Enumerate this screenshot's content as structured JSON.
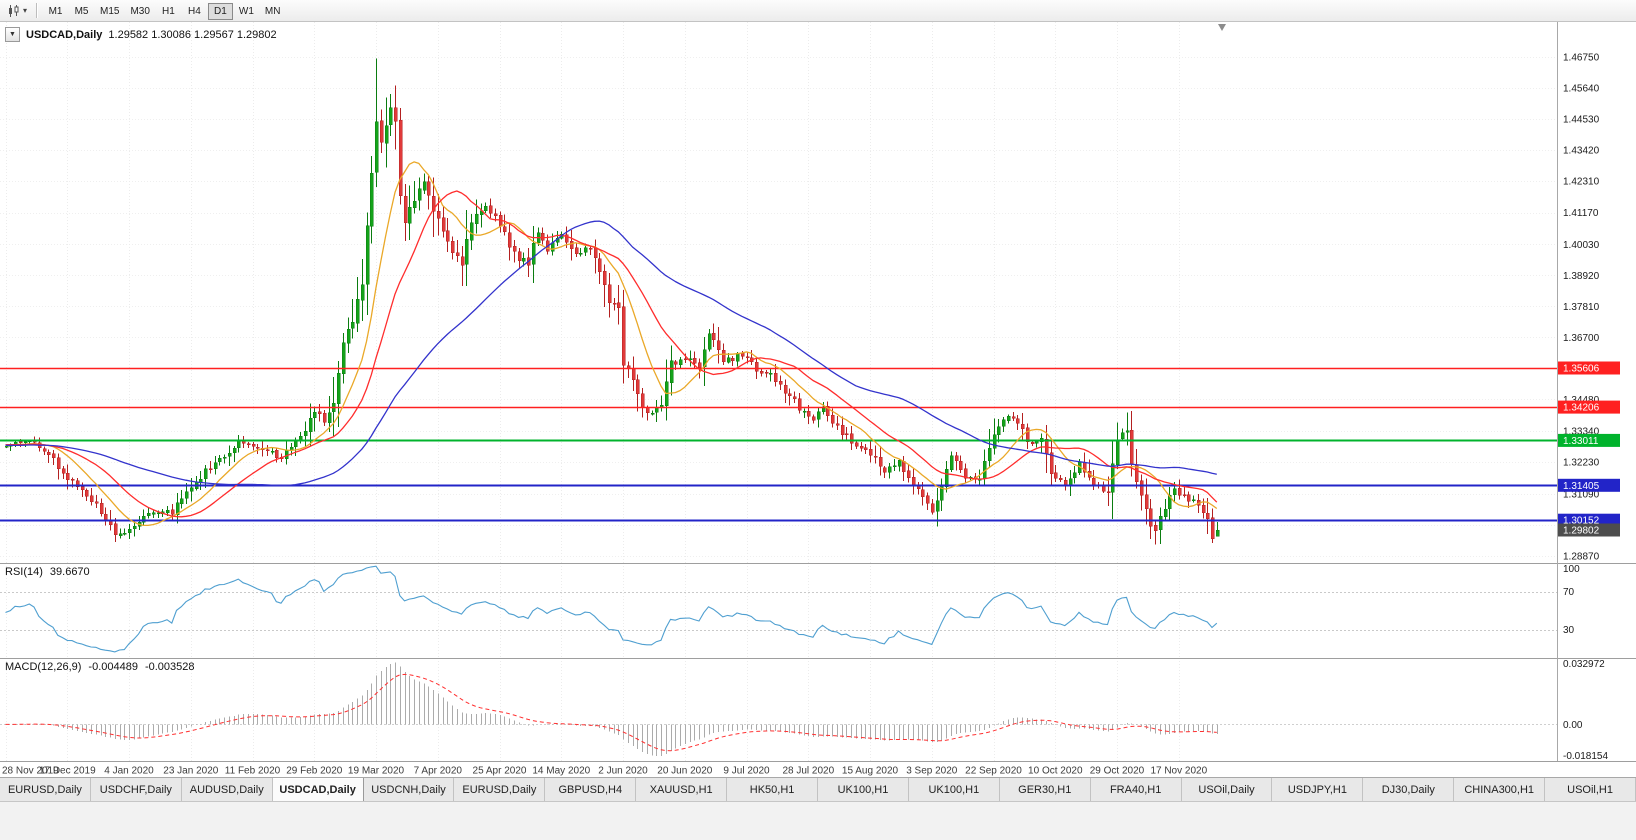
{
  "window": {
    "app_title": "USDCAD,Daily"
  },
  "toolbar": {
    "timeframes": [
      "M1",
      "M5",
      "M15",
      "M30",
      "H1",
      "H4",
      "D1",
      "W1",
      "MN"
    ],
    "active_timeframe": "D1"
  },
  "chart": {
    "symbol": "USDCAD,Daily",
    "ohlc_text": "1.29582 1.30086 1.29567 1.29802",
    "colors": {
      "up": "#14a31a",
      "up_stroke": "#0b7c10",
      "down": "#e03a3a",
      "down_stroke": "#b32020"
    },
    "price_axis": {
      "range_min": 1.2862,
      "range_max": 1.48,
      "labels": [
        "1.46750",
        "1.45640",
        "1.44530",
        "1.43420",
        "1.42310",
        "1.41170",
        "1.40030",
        "1.38920",
        "1.37810",
        "1.36700",
        "1.35590",
        "1.34480",
        "1.33340",
        "1.32230",
        "1.31090",
        "1.29980",
        "1.28870"
      ]
    },
    "hlines": [
      {
        "value": 1.35606,
        "label": "1.35606",
        "color": "#ff2020",
        "width": 1.5
      },
      {
        "value": 1.34206,
        "label": "1.34206",
        "color": "#ff2020",
        "width": 1.5
      },
      {
        "value": 1.33011,
        "label": "1.33011",
        "color": "#00b32c",
        "width": 2
      },
      {
        "value": 1.31405,
        "label": "1.31405",
        "color": "#2224c8",
        "width": 2
      },
      {
        "value": 1.30152,
        "label": "1.30152",
        "color": "#2224c8",
        "width": 2
      }
    ],
    "current_price": {
      "value": 1.29802,
      "label": "1.29802",
      "badge_color": "#4d4d4d"
    }
  },
  "chart_data": {
    "type": "candlestick",
    "symbol": "USDCAD",
    "timeframe": "Daily",
    "candle_count": 256,
    "last_candle": {
      "open": 1.29582,
      "high": 1.30086,
      "low": 1.29567,
      "close": 1.29802
    },
    "close_anchors": [
      [
        0,
        1.3285
      ],
      [
        3,
        1.33
      ],
      [
        6,
        1.3292
      ],
      [
        9,
        1.3252
      ],
      [
        13,
        1.3168
      ],
      [
        16,
        1.312
      ],
      [
        19,
        1.308
      ],
      [
        22,
        1.2988
      ],
      [
        24,
        1.2958
      ],
      [
        26,
        1.2978
      ],
      [
        29,
        1.3035
      ],
      [
        32,
        1.3052
      ],
      [
        35,
        1.3048
      ],
      [
        39,
        1.3135
      ],
      [
        43,
        1.3205
      ],
      [
        46,
        1.3248
      ],
      [
        49,
        1.3298
      ],
      [
        52,
        1.3288
      ],
      [
        55,
        1.3262
      ],
      [
        58,
        1.3246
      ],
      [
        61,
        1.3298
      ],
      [
        63,
        1.3345
      ],
      [
        65,
        1.3402
      ],
      [
        67,
        1.3372
      ],
      [
        69,
        1.3425
      ],
      [
        71,
        1.3648
      ],
      [
        73,
        1.3732
      ],
      [
        75,
        1.3862
      ],
      [
        77,
        1.4262
      ],
      [
        78,
        1.4452
      ],
      [
        79,
        1.438
      ],
      [
        80,
        1.4435
      ],
      [
        81,
        1.4495
      ],
      [
        82,
        1.445
      ],
      [
        83,
        1.4185
      ],
      [
        84,
        1.409
      ],
      [
        86,
        1.416
      ],
      [
        88,
        1.424
      ],
      [
        90,
        1.413
      ],
      [
        92,
        1.404
      ],
      [
        94,
        1.3985
      ],
      [
        96,
        1.394
      ],
      [
        98,
        1.409
      ],
      [
        101,
        1.414
      ],
      [
        104,
        1.408
      ],
      [
        106,
        1.4005
      ],
      [
        108,
        1.395
      ],
      [
        110,
        1.394
      ],
      [
        112,
        1.4055
      ],
      [
        114,
        1.3985
      ],
      [
        117,
        1.4045
      ],
      [
        120,
        1.397
      ],
      [
        123,
        1.3995
      ],
      [
        125,
        1.391
      ],
      [
        127,
        1.3795
      ],
      [
        129,
        1.377
      ],
      [
        130,
        1.357
      ],
      [
        132,
        1.3525
      ],
      [
        134,
        1.3425
      ],
      [
        136,
        1.3395
      ],
      [
        138,
        1.3435
      ],
      [
        140,
        1.3575
      ],
      [
        143,
        1.36
      ],
      [
        146,
        1.355
      ],
      [
        148,
        1.369
      ],
      [
        151,
        1.3585
      ],
      [
        155,
        1.361
      ],
      [
        158,
        1.3555
      ],
      [
        161,
        1.3535
      ],
      [
        164,
        1.348
      ],
      [
        167,
        1.342
      ],
      [
        170,
        1.3385
      ],
      [
        172,
        1.3415
      ],
      [
        175,
        1.335
      ],
      [
        178,
        1.3295
      ],
      [
        182,
        1.3255
      ],
      [
        185,
        1.319
      ],
      [
        188,
        1.3225
      ],
      [
        191,
        1.314
      ],
      [
        193,
        1.311
      ],
      [
        195,
        1.3055
      ],
      [
        197,
        1.3135
      ],
      [
        199,
        1.324
      ],
      [
        202,
        1.3175
      ],
      [
        205,
        1.317
      ],
      [
        208,
        1.3325
      ],
      [
        210,
        1.3385
      ],
      [
        213,
        1.337
      ],
      [
        215,
        1.33
      ],
      [
        218,
        1.3305
      ],
      [
        220,
        1.3185
      ],
      [
        223,
        1.3135
      ],
      [
        226,
        1.3215
      ],
      [
        229,
        1.314
      ],
      [
        232,
        1.3125
      ],
      [
        234,
        1.3315
      ],
      [
        236,
        1.3325
      ],
      [
        237,
        1.3215
      ],
      [
        239,
        1.3095
      ],
      [
        241,
        1.2995
      ],
      [
        242,
        1.2978
      ],
      [
        244,
        1.306
      ],
      [
        246,
        1.3135
      ],
      [
        247,
        1.3115
      ],
      [
        249,
        1.309
      ],
      [
        251,
        1.3075
      ],
      [
        253,
        1.3015
      ],
      [
        254,
        1.2958
      ],
      [
        255,
        1.298
      ]
    ],
    "pinned": {
      "78": {
        "h": 1.4669
      },
      "196": {
        "l": 1.2992
      },
      "242": {
        "l": 1.2928
      },
      "255": {
        "o": 1.29582,
        "h": 1.30086,
        "l": 1.29567,
        "c": 1.29802
      }
    },
    "moving_averages": [
      {
        "period": 10,
        "color": "#eaa828"
      },
      {
        "period": 20,
        "color": "#ff2d2d"
      },
      {
        "period": 50,
        "color": "#3333cc"
      }
    ],
    "x_axis_dates": [
      "28 Nov 2019",
      "17 Dec 2019",
      "4 Jan 2020",
      "23 Jan 2020",
      "11 Feb 2020",
      "29 Feb 2020",
      "19 Mar 2020",
      "7 Apr 2020",
      "25 Apr 2020",
      "14 May 2020",
      "2 Jun 2020",
      "20 Jun 2020",
      "9 Jul 2020",
      "28 Jul 2020",
      "15 Aug 2020",
      "3 Sep 2020",
      "22 Sep 2020",
      "10 Oct 2020",
      "29 Oct 2020",
      "17 Nov 2020"
    ]
  },
  "rsi": {
    "name": "RSI(14)",
    "value": "39.6670",
    "line_color": "#4f9fd0",
    "axis_labels": [
      "100",
      "70",
      "30"
    ],
    "level_lines": [
      70,
      30
    ],
    "scale_min": 0,
    "scale_max": 100
  },
  "macd": {
    "name": "MACD(12,26,9)",
    "value_main": "-0.004489",
    "value_signal": "-0.003528",
    "histogram_color": "#ababab",
    "signal_color": "#ff3030",
    "axis_top": "0.032972",
    "axis_zero": "0.00",
    "axis_bottom": "-0.018154",
    "scale_max": 0.032972,
    "scale_min": -0.018154
  },
  "tabs": {
    "items": [
      {
        "label": "EURUSD,Daily",
        "active": false
      },
      {
        "label": "USDCHF,Daily",
        "active": false
      },
      {
        "label": "AUDUSD,Daily",
        "active": false
      },
      {
        "label": "USDCAD,Daily",
        "active": true
      },
      {
        "label": "USDCNH,Daily",
        "active": false
      },
      {
        "label": "EURUSD,Daily",
        "active": false
      },
      {
        "label": "GBPUSD,H4",
        "active": false
      },
      {
        "label": "XAUUSD,H1",
        "active": false
      },
      {
        "label": "HK50,H1",
        "active": false
      },
      {
        "label": "UK100,H1",
        "active": false
      },
      {
        "label": "UK100,H1",
        "active": false
      },
      {
        "label": "GER30,H1",
        "active": false
      },
      {
        "label": "FRA40,H1",
        "active": false
      },
      {
        "label": "USOil,Daily",
        "active": false
      },
      {
        "label": "USDJPY,H1",
        "active": false
      },
      {
        "label": "DJ30,Daily",
        "active": false
      },
      {
        "label": "CHINA300,H1",
        "active": false
      },
      {
        "label": "USOil,H1",
        "active": false
      }
    ]
  }
}
